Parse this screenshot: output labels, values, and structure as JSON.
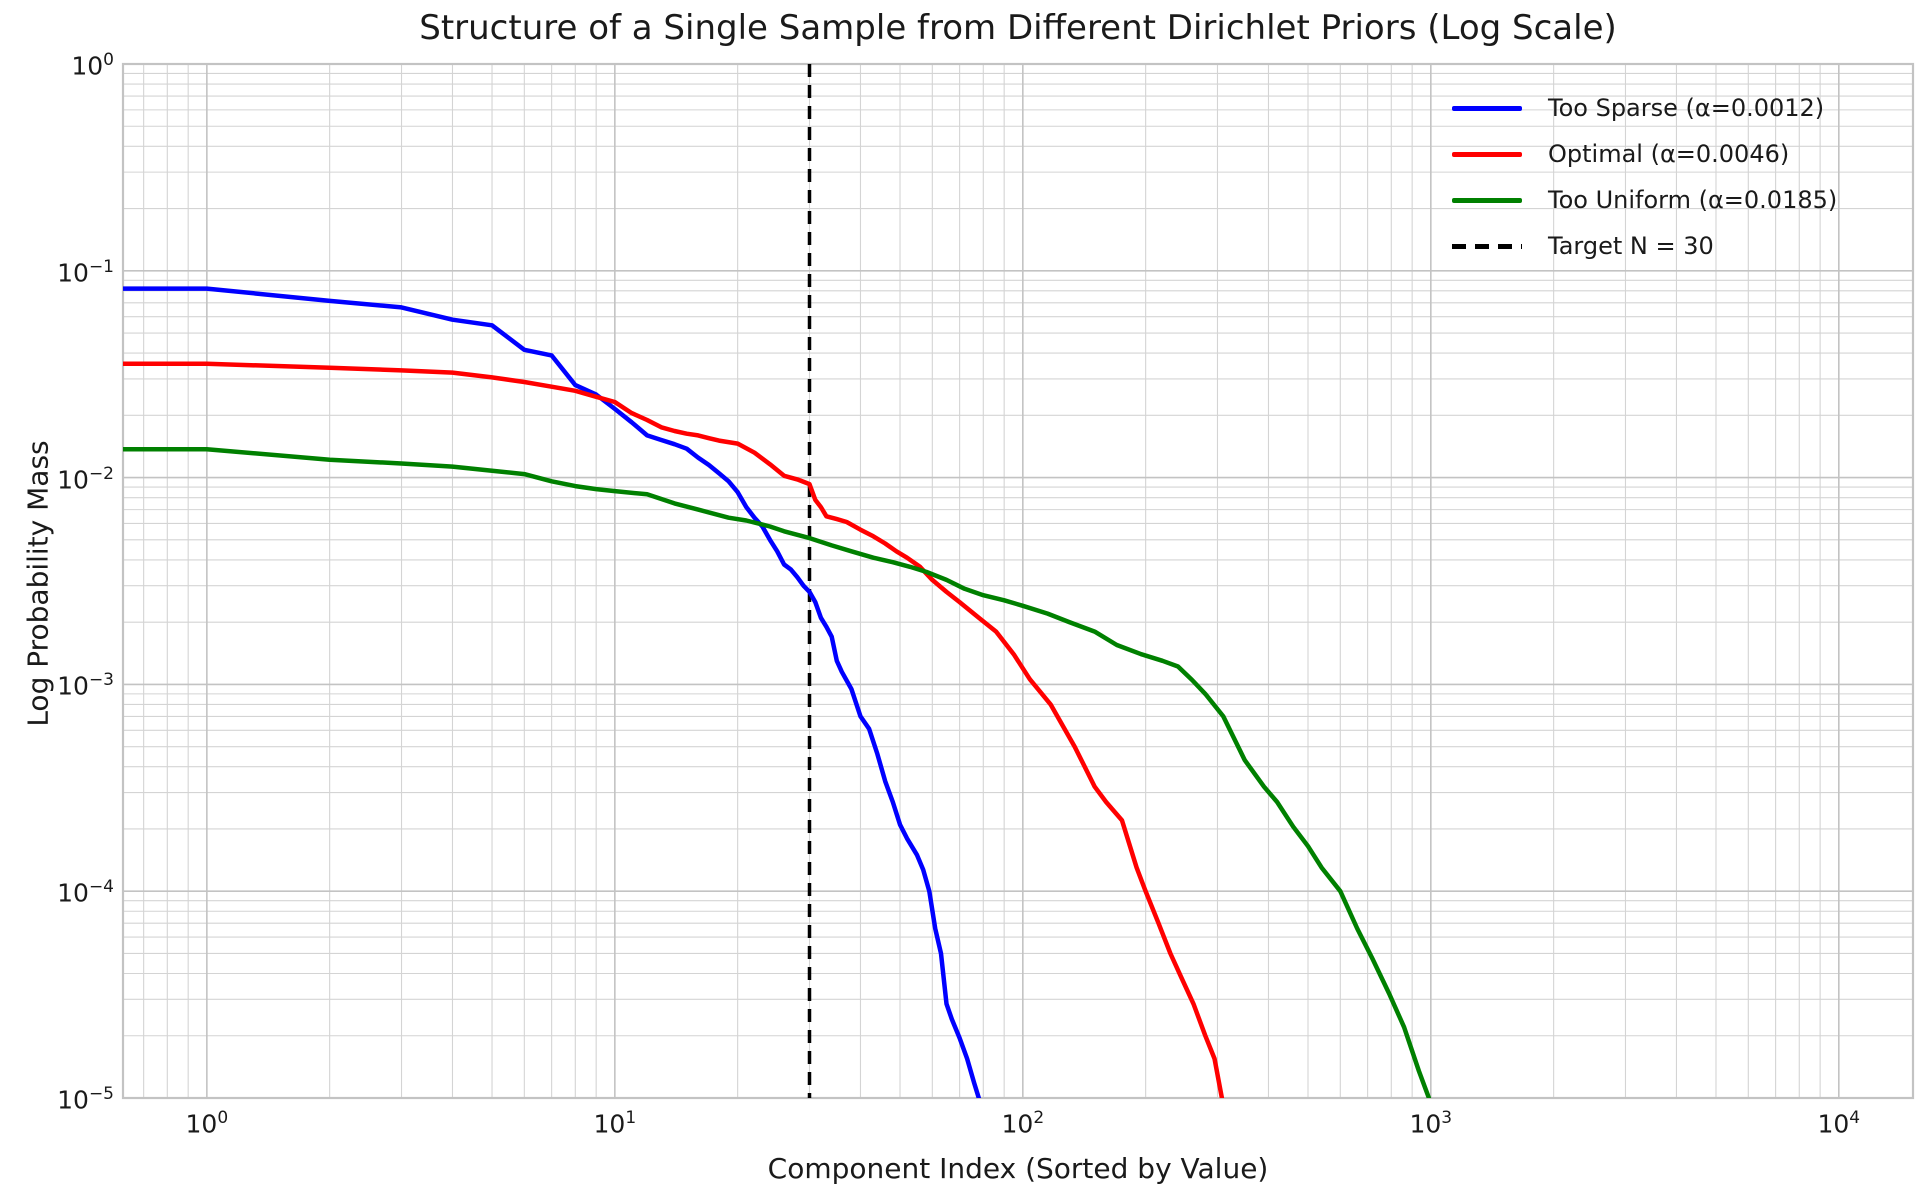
{
  "title": "Structure of a Single Sample from Different Dirichlet Priors (Log Scale)",
  "axes": {
    "xlabel": "Component Index (Sorted by Value)",
    "ylabel": "Log Probability Mass",
    "x_tick_exponents": [
      0,
      1,
      2,
      3,
      4
    ],
    "y_tick_exponents": [
      0,
      -1,
      -2,
      -3,
      -4,
      -5
    ]
  },
  "legend": {
    "items": [
      {
        "label": "Too Sparse (α=0.0012)",
        "color": "#0000ff",
        "dashed": false
      },
      {
        "label": "Optimal (α=0.0046)",
        "color": "#ff0000",
        "dashed": false
      },
      {
        "label": "Too Uniform (α=0.0185)",
        "color": "#008000",
        "dashed": false
      },
      {
        "label": "Target N = 30",
        "color": "#000000",
        "dashed": true
      }
    ],
    "location": "upper right"
  },
  "style": {
    "grid_major_color": "#c3c3c3",
    "grid_minor_color": "#d4d4d4",
    "spine_color": "#c3c3c3",
    "background": "#ffffff",
    "line_width": 4.5,
    "vline_width": 3.5
  },
  "chart_data": {
    "type": "line",
    "log_x": true,
    "log_y": true,
    "xlim": [
      0.623,
      15200
    ],
    "ylim": [
      1e-05,
      1
    ],
    "grid": true,
    "title": "Structure of a Single Sample from Different Dirichlet Priors (Log Scale)",
    "xlabel": "Component Index (Sorted by Value)",
    "ylabel": "Log Probability Mass",
    "vline": {
      "x": 30,
      "label": "Target N = 30",
      "color": "#000000",
      "style": "dashed"
    },
    "series": [
      {
        "name": "Too Sparse (α=0.0012)",
        "color": "#0000ff",
        "points": [
          [
            1,
            0.082
          ],
          [
            2,
            0.0715
          ],
          [
            3,
            0.0665
          ],
          [
            4,
            0.058
          ],
          [
            5,
            0.0545
          ],
          [
            6,
            0.0415
          ],
          [
            7,
            0.039
          ],
          [
            8,
            0.028
          ],
          [
            9,
            0.0252
          ],
          [
            10,
            0.0215
          ],
          [
            11,
            0.0185
          ],
          [
            12,
            0.016
          ],
          [
            13,
            0.0152
          ],
          [
            14,
            0.0145
          ],
          [
            15,
            0.0138
          ],
          [
            16,
            0.0125
          ],
          [
            17,
            0.0115
          ],
          [
            18,
            0.0105
          ],
          [
            19,
            0.0096
          ],
          [
            20,
            0.0085
          ],
          [
            21,
            0.0072
          ],
          [
            22,
            0.0064
          ],
          [
            23,
            0.0058
          ],
          [
            24,
            0.005
          ],
          [
            25,
            0.0044
          ],
          [
            26,
            0.0038
          ],
          [
            27,
            0.0036
          ],
          [
            28,
            0.0033
          ],
          [
            29,
            0.003
          ],
          [
            30,
            0.0028
          ],
          [
            31,
            0.0025
          ],
          [
            32,
            0.0021
          ],
          [
            33,
            0.0019
          ],
          [
            34,
            0.0017
          ],
          [
            35,
            0.0013
          ],
          [
            36,
            0.00115
          ],
          [
            38,
            0.00095
          ],
          [
            40,
            0.0007
          ],
          [
            42,
            0.00061
          ],
          [
            44,
            0.00046
          ],
          [
            46,
            0.00034
          ],
          [
            48,
            0.00027
          ],
          [
            50,
            0.00021
          ],
          [
            52,
            0.00018
          ],
          [
            55,
            0.00015
          ],
          [
            57,
            0.000127
          ],
          [
            59,
            0.0001
          ],
          [
            61,
            6.6e-05
          ],
          [
            63,
            5e-05
          ],
          [
            65,
            2.85e-05
          ],
          [
            67,
            2.4e-05
          ],
          [
            70,
            1.95e-05
          ],
          [
            73,
            1.55e-05
          ],
          [
            76,
            1.18e-05
          ],
          [
            79,
            9.2e-06
          ]
        ]
      },
      {
        "name": "Optimal (α=0.0046)",
        "color": "#ff0000",
        "points": [
          [
            1,
            0.0355
          ],
          [
            2,
            0.034
          ],
          [
            3,
            0.033
          ],
          [
            4,
            0.0322
          ],
          [
            5,
            0.0305
          ],
          [
            6,
            0.029
          ],
          [
            7,
            0.0275
          ],
          [
            8,
            0.0263
          ],
          [
            9,
            0.0246
          ],
          [
            10,
            0.0232
          ],
          [
            11,
            0.0205
          ],
          [
            12,
            0.019
          ],
          [
            13,
            0.0175
          ],
          [
            14,
            0.0168
          ],
          [
            15,
            0.0163
          ],
          [
            16,
            0.016
          ],
          [
            17,
            0.0155
          ],
          [
            18,
            0.0151
          ],
          [
            20,
            0.0146
          ],
          [
            22,
            0.0132
          ],
          [
            24,
            0.0116
          ],
          [
            26,
            0.0102
          ],
          [
            28,
            0.0098
          ],
          [
            30,
            0.0093
          ],
          [
            31,
            0.0078
          ],
          [
            32,
            0.0072
          ],
          [
            33,
            0.0065
          ],
          [
            35,
            0.0063
          ],
          [
            37,
            0.0061
          ],
          [
            40,
            0.0056
          ],
          [
            43,
            0.0052
          ],
          [
            46,
            0.0048
          ],
          [
            49,
            0.0044
          ],
          [
            52,
            0.0041
          ],
          [
            56,
            0.0037
          ],
          [
            60,
            0.0032
          ],
          [
            65,
            0.0028
          ],
          [
            70,
            0.0025
          ],
          [
            78,
            0.0021
          ],
          [
            86,
            0.0018
          ],
          [
            95,
            0.0014
          ],
          [
            104,
            0.00106
          ],
          [
            117,
            0.0008
          ],
          [
            134,
            0.0005
          ],
          [
            150,
            0.00032
          ],
          [
            160,
            0.00027
          ],
          [
            175,
            0.00022
          ],
          [
            190,
            0.00013
          ],
          [
            200,
            0.0001
          ],
          [
            215,
            7e-05
          ],
          [
            230,
            5e-05
          ],
          [
            245,
            3.8e-05
          ],
          [
            262,
            2.85e-05
          ],
          [
            280,
            2e-05
          ],
          [
            295,
            1.55e-05
          ],
          [
            310,
            9.2e-06
          ]
        ]
      },
      {
        "name": "Too Uniform (α=0.0185)",
        "color": "#008000",
        "points": [
          [
            1,
            0.0137
          ],
          [
            2,
            0.0122
          ],
          [
            3,
            0.0117
          ],
          [
            4,
            0.0113
          ],
          [
            5,
            0.0108
          ],
          [
            6,
            0.0104
          ],
          [
            7,
            0.0096
          ],
          [
            8,
            0.0091
          ],
          [
            9,
            0.0088
          ],
          [
            10,
            0.0086
          ],
          [
            12,
            0.0083
          ],
          [
            14,
            0.0075
          ],
          [
            16,
            0.007
          ],
          [
            19,
            0.0064
          ],
          [
            21,
            0.0062
          ],
          [
            24,
            0.0058
          ],
          [
            26,
            0.0055
          ],
          [
            30,
            0.0051
          ],
          [
            34,
            0.0047
          ],
          [
            38,
            0.0044
          ],
          [
            43,
            0.0041
          ],
          [
            48,
            0.0039
          ],
          [
            53,
            0.0037
          ],
          [
            58,
            0.0035
          ],
          [
            65,
            0.0032
          ],
          [
            72,
            0.0029
          ],
          [
            80,
            0.0027
          ],
          [
            90,
            0.00255
          ],
          [
            100,
            0.0024
          ],
          [
            115,
            0.0022
          ],
          [
            130,
            0.002
          ],
          [
            150,
            0.0018
          ],
          [
            170,
            0.00155
          ],
          [
            195,
            0.0014
          ],
          [
            220,
            0.0013
          ],
          [
            240,
            0.00122
          ],
          [
            260,
            0.00105
          ],
          [
            280,
            0.0009
          ],
          [
            310,
            0.0007
          ],
          [
            350,
            0.00043
          ],
          [
            390,
            0.00032
          ],
          [
            420,
            0.00027
          ],
          [
            460,
            0.000205
          ],
          [
            500,
            0.000165
          ],
          [
            540,
            0.00013
          ],
          [
            600,
            0.0001
          ],
          [
            660,
            6.6e-05
          ],
          [
            720,
            4.7e-05
          ],
          [
            790,
            3.2e-05
          ],
          [
            860,
            2.2e-05
          ],
          [
            935,
            1.35e-05
          ],
          [
            1005,
            9.2e-06
          ]
        ]
      }
    ]
  }
}
